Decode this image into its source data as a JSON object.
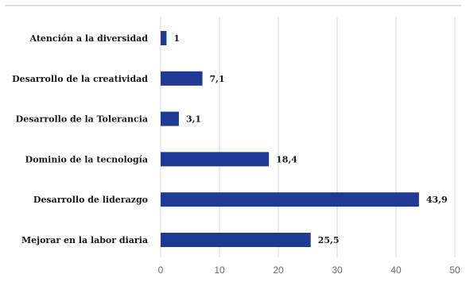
{
  "chart_data": {
    "type": "bar",
    "orientation": "horizontal",
    "categories": [
      "Atención a la diversidad",
      "Desarrollo de la creatividad",
      "Desarrollo de la Tolerancia",
      "Dominio de la tecnología",
      "Desarrollo de liderazgo",
      "Mejorar en la labor diaria"
    ],
    "values": [
      1,
      7.1,
      3.1,
      18.4,
      43.9,
      25.5
    ],
    "data_labels": [
      "1",
      "7,1",
      "3,1",
      "18,4",
      "43,9",
      "25,5"
    ],
    "xlim": [
      0,
      50
    ],
    "ticks": [
      0,
      10,
      20,
      30,
      40,
      50
    ],
    "tick_labels": [
      "0",
      "10",
      "20",
      "30",
      "40",
      "50"
    ],
    "grid": true,
    "bar_color": "#1f3a93",
    "legend": "none"
  }
}
